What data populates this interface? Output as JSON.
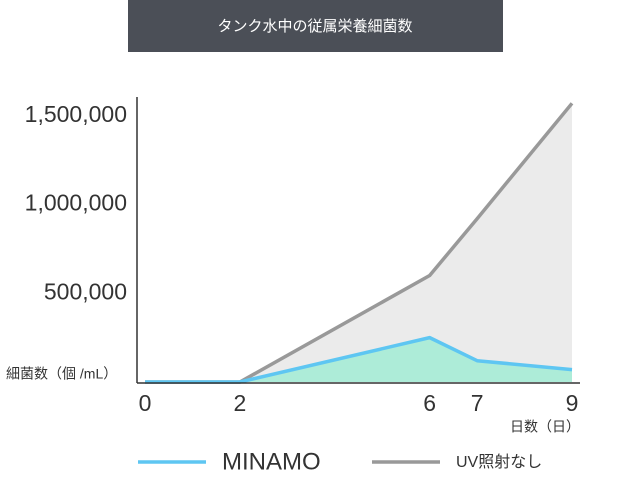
{
  "chart_data": {
    "type": "area",
    "title": "タンク水中の従属栄養細菌数",
    "y_label": "細菌数（個 /mL）",
    "x_label": "日数（日）",
    "x": [
      0,
      2,
      6,
      7,
      9
    ],
    "xlim": [
      0,
      9
    ],
    "xticks": [
      0,
      2,
      6,
      7,
      9
    ],
    "ylim": [
      0,
      1600000
    ],
    "yticks": [
      {
        "value": 500000,
        "label": "500,000"
      },
      {
        "value": 1000000,
        "label": "1,000,000"
      },
      {
        "value": 1500000,
        "label": "1,500,000"
      }
    ],
    "series": [
      {
        "name": "UV照射なし",
        "color": "#999999",
        "fill": "#ebebeb",
        "values": [
          0,
          0,
          600000,
          920000,
          1570000
        ]
      },
      {
        "name": "MINAMO",
        "color": "#5ec6f2",
        "fill": "#a6ecd6",
        "values": [
          0,
          0,
          250000,
          120000,
          70000
        ]
      }
    ],
    "legend": "bottom"
  }
}
